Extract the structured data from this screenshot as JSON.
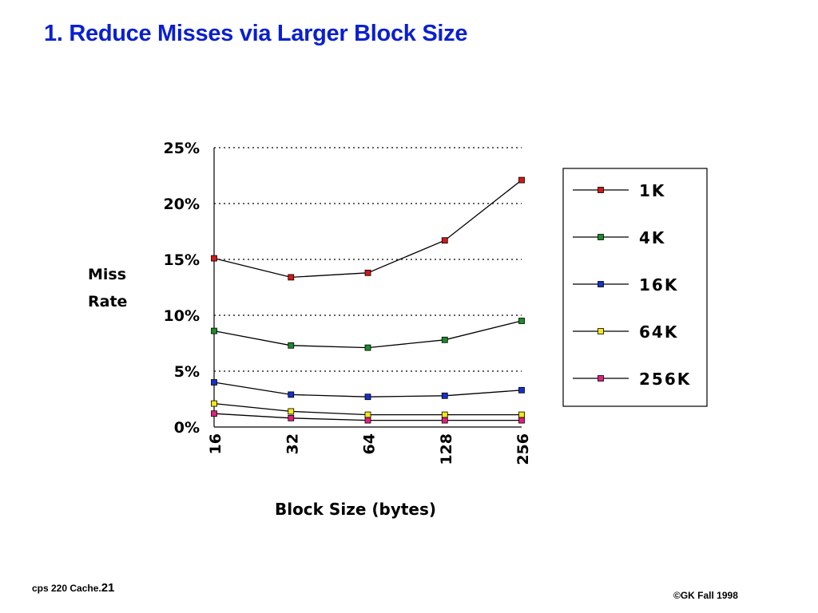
{
  "slide": {
    "title": "1. Reduce Misses via Larger Block Size",
    "footer_left": "cps 220 Cache.",
    "page_number": "21",
    "footer_right": "©GK Fall 1998"
  },
  "chart_data": {
    "type": "line",
    "title": "",
    "xlabel": "Block Size (bytes)",
    "ylabel": "Miss Rate",
    "x": [
      16,
      32,
      64,
      128,
      256
    ],
    "x_tick_labels": [
      "16",
      "32",
      "64",
      "128",
      "256"
    ],
    "y_tick_labels": [
      "0%",
      "5%",
      "10%",
      "15%",
      "20%",
      "25%"
    ],
    "ylim": [
      0,
      25
    ],
    "grid": "horizontal dotted",
    "legend_position": "right",
    "series": [
      {
        "name": "1K",
        "color": "#d01818",
        "values": [
          15.1,
          13.4,
          13.8,
          16.7,
          22.1
        ]
      },
      {
        "name": "4K",
        "color": "#1c8a2a",
        "values": [
          8.6,
          7.3,
          7.1,
          7.8,
          9.5
        ]
      },
      {
        "name": "16K",
        "color": "#1530c8",
        "values": [
          4.0,
          2.9,
          2.7,
          2.8,
          3.3
        ]
      },
      {
        "name": "64K",
        "color": "#f2e81a",
        "values": [
          2.1,
          1.4,
          1.1,
          1.1,
          1.1
        ]
      },
      {
        "name": "256K",
        "color": "#e0207a",
        "values": [
          1.2,
          0.8,
          0.6,
          0.6,
          0.6
        ]
      }
    ]
  }
}
